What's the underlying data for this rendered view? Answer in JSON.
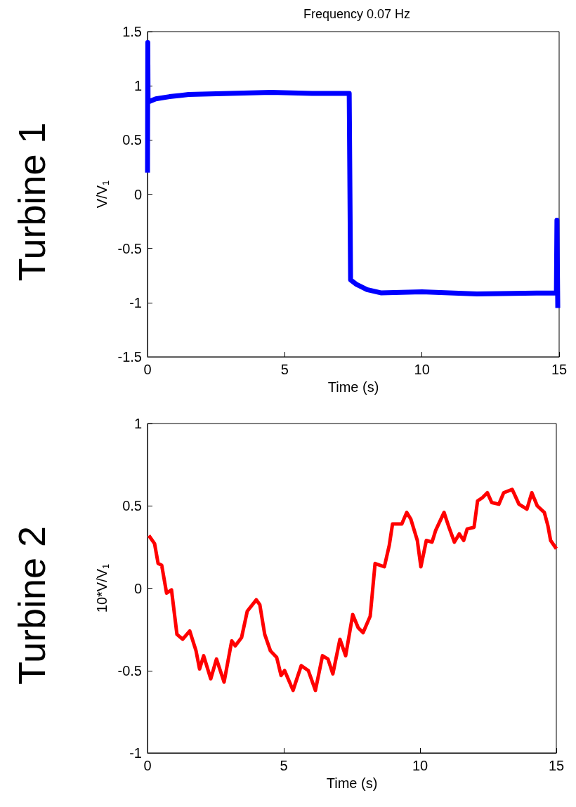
{
  "chart_data": [
    {
      "type": "line",
      "title": "Frequency 0.07 Hz",
      "xlabel": "Time (s)",
      "ylabel": "V/V$_{1}$",
      "annotations": [
        "Turbine 1"
      ],
      "xlim": [
        0,
        15
      ],
      "xticks": [
        0,
        5,
        10,
        15
      ],
      "ylim": [
        -1.5,
        1.5
      ],
      "yticks": [
        -1.5,
        -1,
        -0.5,
        0,
        0.5,
        1,
        1.5
      ],
      "grid": false,
      "series": [
        {
          "color": "#0000ff",
          "x": [
            0,
            0.01,
            0.02,
            0.3,
            0.8,
            1.5,
            3,
            4.5,
            6,
            7.35,
            7.4,
            7.6,
            8,
            8.5,
            10,
            12,
            14.9,
            14.92,
            14.95
          ],
          "values": [
            0.2,
            1.4,
            0.85,
            0.88,
            0.9,
            0.92,
            0.93,
            0.94,
            0.93,
            0.93,
            -0.79,
            -0.83,
            -0.88,
            -0.91,
            -0.9,
            -0.92,
            -0.91,
            -0.24,
            -1.05
          ]
        }
      ]
    },
    {
      "type": "line",
      "xlabel": "Time (s)",
      "ylabel": "10*V/V$_{1}$",
      "annotations": [
        "Turbine 2"
      ],
      "xlim": [
        0,
        15
      ],
      "xticks": [
        0,
        5,
        10,
        15
      ],
      "ylim": [
        -1,
        1
      ],
      "yticks": [
        -1,
        -0.5,
        0,
        0.5,
        1
      ],
      "grid": false,
      "series": [
        {
          "color": "#ff0000",
          "x": [
            0.05,
            0.26,
            0.39,
            0.52,
            0.7,
            0.88,
            1.08,
            1.29,
            1.55,
            1.78,
            1.91,
            2.06,
            2.32,
            2.53,
            2.81,
            3.09,
            3.22,
            3.45,
            3.66,
            3.99,
            4.12,
            4.3,
            4.51,
            4.74,
            4.9,
            5.03,
            5.34,
            5.64,
            5.9,
            6.16,
            6.42,
            6.62,
            6.8,
            7.06,
            7.27,
            7.53,
            7.73,
            7.91,
            8.17,
            8.35,
            8.69,
            8.87,
            8.99,
            9.33,
            9.51,
            9.66,
            9.9,
            10.03,
            10.23,
            10.44,
            10.57,
            10.88,
            11.06,
            11.26,
            11.44,
            11.6,
            11.73,
            11.98,
            12.11,
            12.29,
            12.47,
            12.63,
            12.89,
            13.07,
            13.38,
            13.63,
            13.92,
            14.1,
            14.3,
            14.56,
            14.69,
            14.79,
            15
          ],
          "values": [
            0.32,
            0.27,
            0.15,
            0.14,
            -0.03,
            -0.01,
            -0.28,
            -0.31,
            -0.26,
            -0.38,
            -0.49,
            -0.41,
            -0.55,
            -0.43,
            -0.57,
            -0.32,
            -0.35,
            -0.3,
            -0.14,
            -0.07,
            -0.1,
            -0.28,
            -0.38,
            -0.42,
            -0.53,
            -0.5,
            -0.62,
            -0.47,
            -0.5,
            -0.62,
            -0.41,
            -0.43,
            -0.52,
            -0.31,
            -0.41,
            -0.16,
            -0.24,
            -0.27,
            -0.17,
            0.15,
            0.13,
            0.26,
            0.39,
            0.39,
            0.46,
            0.42,
            0.29,
            0.13,
            0.29,
            0.28,
            0.35,
            0.46,
            0.37,
            0.28,
            0.33,
            0.29,
            0.36,
            0.37,
            0.53,
            0.55,
            0.58,
            0.52,
            0.51,
            0.58,
            0.6,
            0.51,
            0.48,
            0.58,
            0.5,
            0.46,
            0.38,
            0.29,
            0.24
          ]
        }
      ]
    }
  ]
}
